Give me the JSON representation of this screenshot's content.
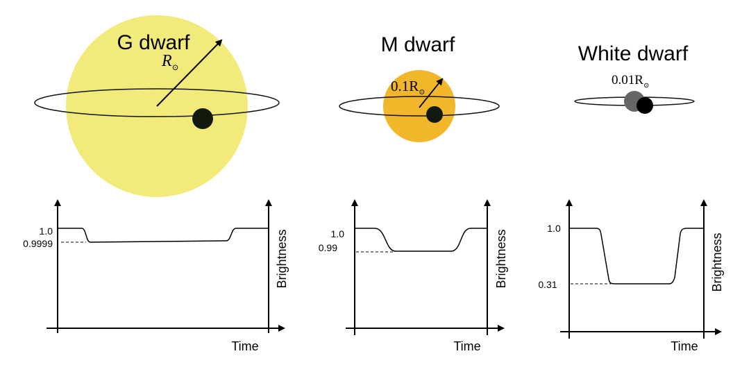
{
  "panels": [
    {
      "title": "G dwarf",
      "radius_label": "R",
      "radius_sub": "⊙",
      "star_color": "#F2EA7A",
      "axis": {
        "x_label": "Time",
        "y_label": "Brightness"
      },
      "ticks": [
        "1.0",
        "0.9999"
      ],
      "light_curve": {
        "baseline": 1.0,
        "transit_depth_value": 0.9999
      }
    },
    {
      "title": "M dwarf",
      "radius_label": "0.1R",
      "radius_sub": "⊙",
      "star_color": "#F2B62A",
      "axis": {
        "x_label": "Time",
        "y_label": "Brightness"
      },
      "ticks": [
        "1.0",
        "0.99"
      ],
      "light_curve": {
        "baseline": 1.0,
        "transit_depth_value": 0.99
      }
    },
    {
      "title": "White dwarf",
      "radius_label": "0.01R",
      "radius_sub": "⊙",
      "star_color": "#666666",
      "axis": {
        "x_label": "Time",
        "y_label": "Brightness"
      },
      "ticks": [
        "1.0",
        "0.31"
      ],
      "light_curve": {
        "baseline": 1.0,
        "transit_depth_value": 0.31
      }
    }
  ],
  "planet_color": "#121A0F"
}
